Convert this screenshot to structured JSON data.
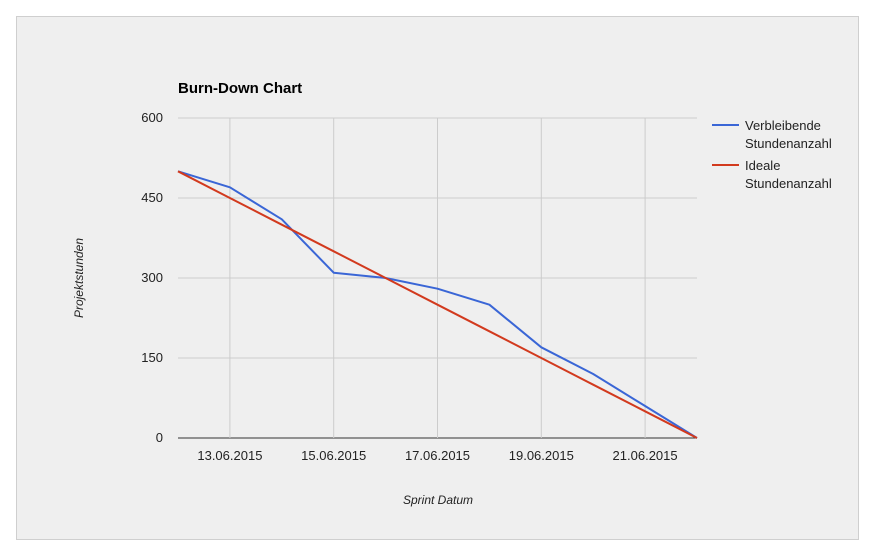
{
  "chart_data": {
    "type": "line",
    "title": "Burn-Down Chart",
    "xlabel": "Sprint Datum",
    "ylabel": "Projektstunden",
    "x": [
      "12.06.2015",
      "13.06.2015",
      "14.06.2015",
      "15.06.2015",
      "16.06.2015",
      "17.06.2015",
      "18.06.2015",
      "19.06.2015",
      "20.06.2015",
      "21.06.2015",
      "22.06.2015"
    ],
    "x_tick_labels": [
      "13.06.2015",
      "15.06.2015",
      "17.06.2015",
      "19.06.2015",
      "21.06.2015"
    ],
    "y_ticks": [
      0,
      150,
      300,
      450,
      600
    ],
    "ylim": [
      0,
      600
    ],
    "grid": true,
    "legend_position": "right",
    "series": [
      {
        "name": "Verbleibende Stundenanzahl",
        "legend_lines": [
          "Verbleibende",
          "Stundenanzahl"
        ],
        "color": "#3a66d6",
        "values": [
          500,
          470,
          410,
          310,
          300,
          280,
          250,
          170,
          120,
          60,
          0
        ]
      },
      {
        "name": "Ideale Stundenanzahl",
        "legend_lines": [
          "Ideale",
          "Stundenanzahl"
        ],
        "color": "#d23a1e",
        "values": [
          500,
          450,
          400,
          350,
          300,
          250,
          200,
          150,
          100,
          50,
          0
        ]
      }
    ]
  }
}
